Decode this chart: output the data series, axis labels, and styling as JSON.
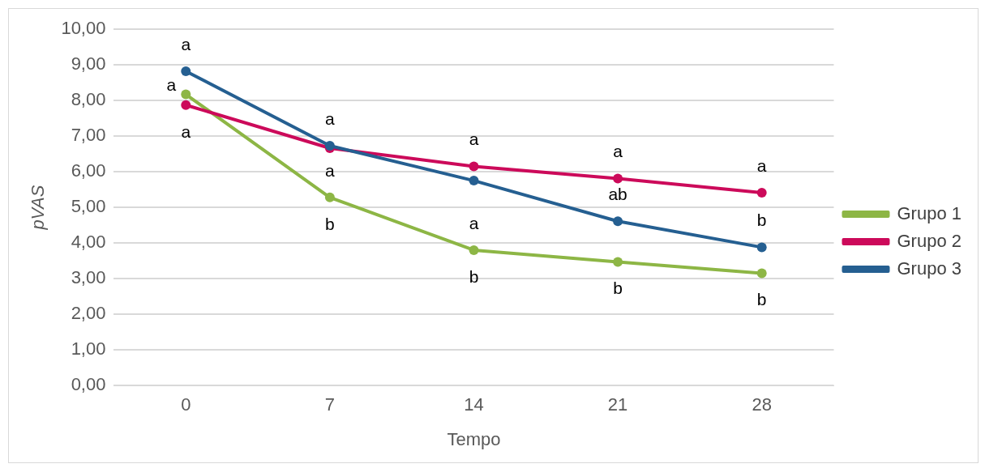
{
  "chart_data": {
    "type": "line",
    "xlabel": "Tempo",
    "ylabel": "pVAS",
    "categories": [
      "0",
      "7",
      "14",
      "21",
      "28"
    ],
    "series": [
      {
        "name": "Grupo 1",
        "color": "#8db645",
        "values": [
          8.17,
          5.28,
          3.8,
          3.47,
          3.15
        ]
      },
      {
        "name": "Grupo 2",
        "color": "#cc0a5a",
        "values": [
          7.87,
          6.66,
          6.15,
          5.81,
          5.41
        ]
      },
      {
        "name": "Grupo 3",
        "color": "#255f91",
        "values": [
          8.82,
          6.73,
          5.75,
          4.61,
          3.88
        ]
      }
    ],
    "ylim": [
      0,
      10
    ],
    "yticks": [
      {
        "value": 0,
        "label": "0,00"
      },
      {
        "value": 1,
        "label": "1,00"
      },
      {
        "value": 2,
        "label": "2,00"
      },
      {
        "value": 3,
        "label": "3,00"
      },
      {
        "value": 4,
        "label": "4,00"
      },
      {
        "value": 5,
        "label": "5,00"
      },
      {
        "value": 6,
        "label": "6,00"
      },
      {
        "value": 7,
        "label": "7,00"
      },
      {
        "value": 8,
        "label": "8,00"
      },
      {
        "value": 9,
        "label": "9,00"
      },
      {
        "value": 10,
        "label": "10,00"
      }
    ],
    "grid": "y",
    "legend": "right",
    "marker": "circle",
    "line_style": "solid",
    "annotations": [
      {
        "text": "a",
        "x": "0",
        "y": 8.82
      },
      {
        "text": "a",
        "x": "0",
        "y": 8.17
      },
      {
        "text": "a",
        "x": "0",
        "y": 7.87
      },
      {
        "text": "a",
        "x": "7",
        "y": 6.73
      },
      {
        "text": "a",
        "x": "7",
        "y": 5.28
      },
      {
        "text": "b",
        "x": "7",
        "y": 5.28
      },
      {
        "text": "a",
        "x": "14",
        "y": 6.15
      },
      {
        "text": "a",
        "x": "14",
        "y": 3.8
      },
      {
        "text": "b",
        "x": "14",
        "y": 3.8
      },
      {
        "text": "a",
        "x": "21",
        "y": 5.81
      },
      {
        "text": "ab",
        "x": "21",
        "y": 4.61
      },
      {
        "text": "b",
        "x": "21",
        "y": 3.47
      },
      {
        "text": "a",
        "x": "28",
        "y": 5.41
      },
      {
        "text": "b",
        "x": "28",
        "y": 3.88
      },
      {
        "text": "b",
        "x": "28",
        "y": 3.15
      }
    ]
  }
}
